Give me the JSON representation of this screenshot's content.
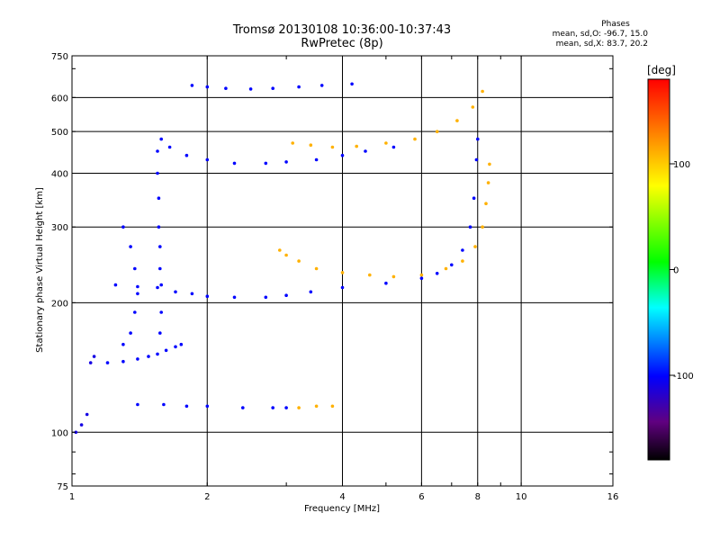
{
  "chart_data": {
    "type": "scatter",
    "title": "Tromsø 20130108 10:36:00-10:37:43",
    "subtitle": "RwPretec (8p)",
    "xlabel": "Frequency [MHz]",
    "ylabel": "Stationary phase Virtual Height [km]",
    "x_scale": "log",
    "y_scale": "log",
    "xlim": [
      1,
      16
    ],
    "ylim": [
      75,
      750
    ],
    "x_ticks": [
      1,
      2,
      4,
      6,
      8,
      10,
      16
    ],
    "y_ticks": [
      75,
      100,
      200,
      300,
      400,
      500,
      600,
      750
    ],
    "grid": true,
    "colorbar": {
      "label": "[deg]",
      "range": [
        -180,
        180
      ],
      "ticks": [
        -100,
        0,
        100
      ]
    },
    "stats": {
      "heading": "Phases",
      "line_o": "mean, sd,O: -96.7, 15.0",
      "line_x": "mean, sd,X: 83.7, 20.2"
    },
    "traces": [
      {
        "mode": "O",
        "phase": -100,
        "points": [
          [
            1.2,
            145
          ],
          [
            1.3,
            146
          ],
          [
            1.4,
            148
          ],
          [
            1.48,
            150
          ],
          [
            1.55,
            152
          ],
          [
            1.62,
            155
          ],
          [
            1.7,
            158
          ],
          [
            1.75,
            160
          ]
        ]
      },
      {
        "mode": "O",
        "phase": -100,
        "points": [
          [
            1.25,
            220
          ],
          [
            1.4,
            218
          ],
          [
            1.55,
            217
          ],
          [
            1.7,
            212
          ],
          [
            1.85,
            210
          ],
          [
            2.0,
            207
          ],
          [
            2.3,
            206
          ],
          [
            2.7,
            206
          ],
          [
            3.0,
            208
          ],
          [
            3.4,
            212
          ],
          [
            4.0,
            217
          ],
          [
            5.0,
            222
          ],
          [
            6.0,
            228
          ],
          [
            6.5,
            234
          ],
          [
            7.0,
            245
          ],
          [
            7.4,
            265
          ],
          [
            7.7,
            300
          ],
          [
            7.85,
            350
          ],
          [
            7.95,
            430
          ],
          [
            8.0,
            480
          ]
        ]
      },
      {
        "mode": "O",
        "phase": -100,
        "points": [
          [
            1.58,
            480
          ],
          [
            1.65,
            460
          ],
          [
            1.8,
            440
          ],
          [
            2.0,
            430
          ],
          [
            2.3,
            422
          ],
          [
            2.7,
            422
          ],
          [
            3.0,
            425
          ],
          [
            3.5,
            430
          ],
          [
            4.0,
            440
          ],
          [
            4.5,
            450
          ],
          [
            5.2,
            460
          ]
        ]
      },
      {
        "mode": "O",
        "phase": -100,
        "points": [
          [
            1.85,
            640
          ],
          [
            2.0,
            635
          ],
          [
            2.2,
            630
          ],
          [
            2.5,
            628
          ],
          [
            2.8,
            630
          ],
          [
            3.2,
            635
          ],
          [
            3.6,
            640
          ],
          [
            4.2,
            645
          ]
        ]
      },
      {
        "mode": "O",
        "phase": -100,
        "points": [
          [
            1.55,
            450
          ],
          [
            1.55,
            400
          ],
          [
            1.56,
            350
          ],
          [
            1.56,
            300
          ],
          [
            1.57,
            270
          ],
          [
            1.57,
            240
          ],
          [
            1.58,
            220
          ],
          [
            1.58,
            190
          ],
          [
            1.57,
            170
          ]
        ]
      },
      {
        "mode": "O",
        "phase": -100,
        "points": [
          [
            1.3,
            300
          ],
          [
            1.35,
            270
          ],
          [
            1.38,
            240
          ],
          [
            1.4,
            210
          ],
          [
            1.38,
            190
          ],
          [
            1.35,
            170
          ],
          [
            1.3,
            160
          ]
        ]
      },
      {
        "mode": "O",
        "phase": -100,
        "points": [
          [
            1.4,
            116
          ],
          [
            1.6,
            116
          ],
          [
            1.8,
            115
          ],
          [
            2.0,
            115
          ],
          [
            2.4,
            114
          ],
          [
            2.8,
            114
          ],
          [
            3.0,
            114
          ]
        ]
      },
      {
        "mode": "O",
        "phase": -110,
        "points": [
          [
            1.02,
            100
          ],
          [
            1.05,
            104
          ],
          [
            1.08,
            110
          ],
          [
            1.1,
            145
          ],
          [
            1.12,
            150
          ]
        ]
      },
      {
        "mode": "X",
        "phase": 110,
        "points": [
          [
            2.9,
            265
          ],
          [
            3.0,
            258
          ],
          [
            3.2,
            250
          ],
          [
            3.5,
            240
          ],
          [
            4.0,
            235
          ],
          [
            4.6,
            232
          ],
          [
            5.2,
            230
          ],
          [
            6.0,
            232
          ],
          [
            6.8,
            240
          ],
          [
            7.4,
            250
          ],
          [
            7.9,
            270
          ],
          [
            8.2,
            300
          ],
          [
            8.35,
            340
          ],
          [
            8.45,
            380
          ],
          [
            8.5,
            420
          ]
        ]
      },
      {
        "mode": "X",
        "phase": 110,
        "points": [
          [
            3.1,
            470
          ],
          [
            3.4,
            465
          ],
          [
            3.8,
            460
          ],
          [
            4.3,
            462
          ],
          [
            5.0,
            470
          ],
          [
            5.8,
            480
          ],
          [
            6.5,
            500
          ],
          [
            7.2,
            530
          ],
          [
            7.8,
            570
          ],
          [
            8.2,
            620
          ]
        ]
      },
      {
        "mode": "X",
        "phase": 110,
        "points": [
          [
            3.2,
            114
          ],
          [
            3.5,
            115
          ],
          [
            3.8,
            115
          ]
        ]
      }
    ]
  }
}
